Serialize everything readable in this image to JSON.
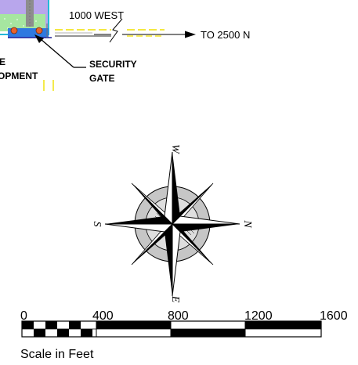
{
  "map": {
    "road_label": "1000 WEST",
    "arrow_label": "TO 2500 N",
    "gate_label_line1": "SECURITY",
    "gate_label_line2": "GATE",
    "cut_label_line1": "E",
    "cut_label_line2": "OPMENT"
  },
  "compass": {
    "top": "W",
    "left": "S",
    "right": "N",
    "bottom": "E"
  },
  "scale": {
    "ticks": [
      "0",
      "400",
      "800",
      "1200",
      "1600"
    ],
    "caption": "Scale in Feet"
  },
  "colors": {
    "site_fill": "#b8a6ec",
    "green_strip": "#a6e6a0",
    "cyan_border": "#23b8d8",
    "blue_fill": "#2f79e0",
    "gate_dot": "#e8622a",
    "yellow_line": "#f0e000"
  }
}
